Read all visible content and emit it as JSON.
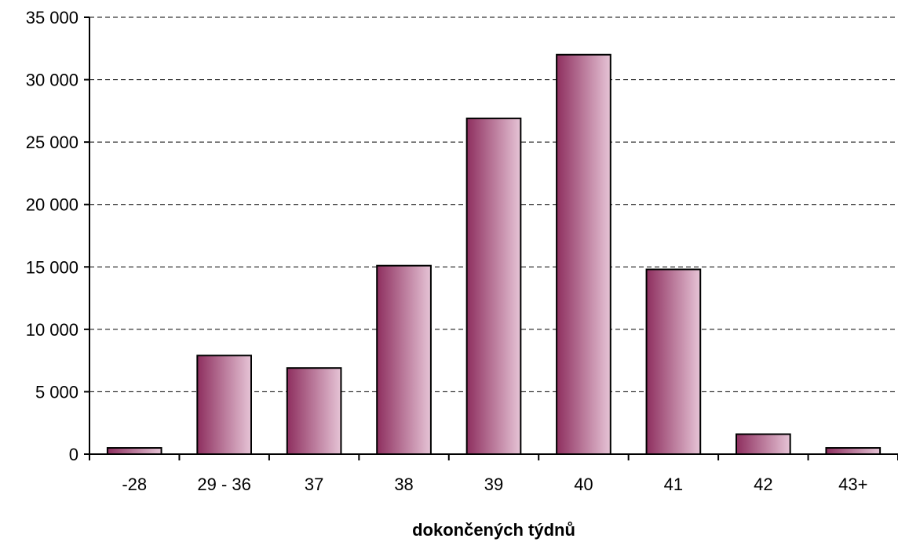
{
  "chart_data": {
    "type": "bar",
    "categories": [
      "-28",
      "29 - 36",
      "37",
      "38",
      "39",
      "40",
      "41",
      "42",
      "43+"
    ],
    "values": [
      500,
      7900,
      6900,
      15100,
      26900,
      32000,
      14800,
      1600,
      500
    ],
    "title": "",
    "xlabel": "dokončených týdnů",
    "ylabel": "",
    "ylim": [
      0,
      35000
    ],
    "yticks": [
      0,
      5000,
      10000,
      15000,
      20000,
      25000,
      30000,
      35000
    ],
    "ytick_labels": [
      "0",
      "5 000",
      "10 000",
      "15 000",
      "20 000",
      "25 000",
      "30 000",
      "35 000"
    ],
    "grid": "horizontal dashed",
    "legend": "none",
    "bar_gradient": [
      "#8e2f5f",
      "#e6c4d6"
    ]
  }
}
